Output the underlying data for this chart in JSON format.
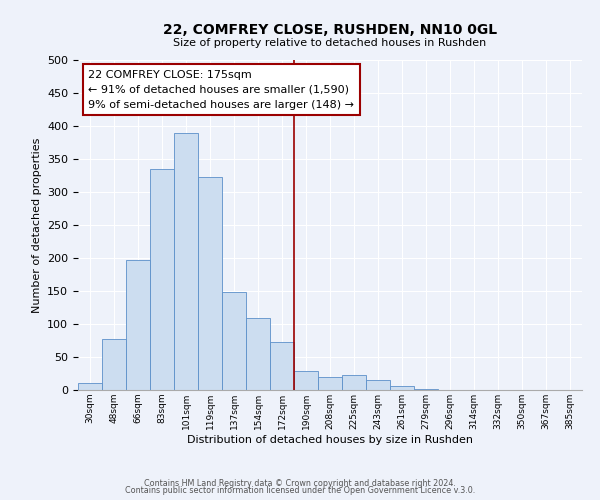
{
  "title": "22, COMFREY CLOSE, RUSHDEN, NN10 0GL",
  "subtitle": "Size of property relative to detached houses in Rushden",
  "xlabel": "Distribution of detached houses by size in Rushden",
  "ylabel": "Number of detached properties",
  "bin_labels": [
    "30sqm",
    "48sqm",
    "66sqm",
    "83sqm",
    "101sqm",
    "119sqm",
    "137sqm",
    "154sqm",
    "172sqm",
    "190sqm",
    "208sqm",
    "225sqm",
    "243sqm",
    "261sqm",
    "279sqm",
    "296sqm",
    "314sqm",
    "332sqm",
    "350sqm",
    "367sqm",
    "385sqm"
  ],
  "bar_heights": [
    10,
    78,
    197,
    335,
    390,
    323,
    149,
    109,
    72,
    29,
    19,
    22,
    15,
    6,
    2,
    0,
    0,
    0,
    0,
    0,
    0
  ],
  "bar_color": "#ccddf0",
  "bar_edge_color": "#5b8fc9",
  "vline_x": 8.5,
  "vline_color": "#9b0000",
  "annotation_title": "22 COMFREY CLOSE: 175sqm",
  "annotation_line1": "← 91% of detached houses are smaller (1,590)",
  "annotation_line2": "9% of semi-detached houses are larger (148) →",
  "annotation_box_edge": "#9b0000",
  "ylim": [
    0,
    500
  ],
  "footer1": "Contains HM Land Registry data © Crown copyright and database right 2024.",
  "footer2": "Contains public sector information licensed under the Open Government Licence v.3.0.",
  "background_color": "#eef2fa",
  "plot_background": "#eef2fa",
  "grid_color": "#ffffff"
}
